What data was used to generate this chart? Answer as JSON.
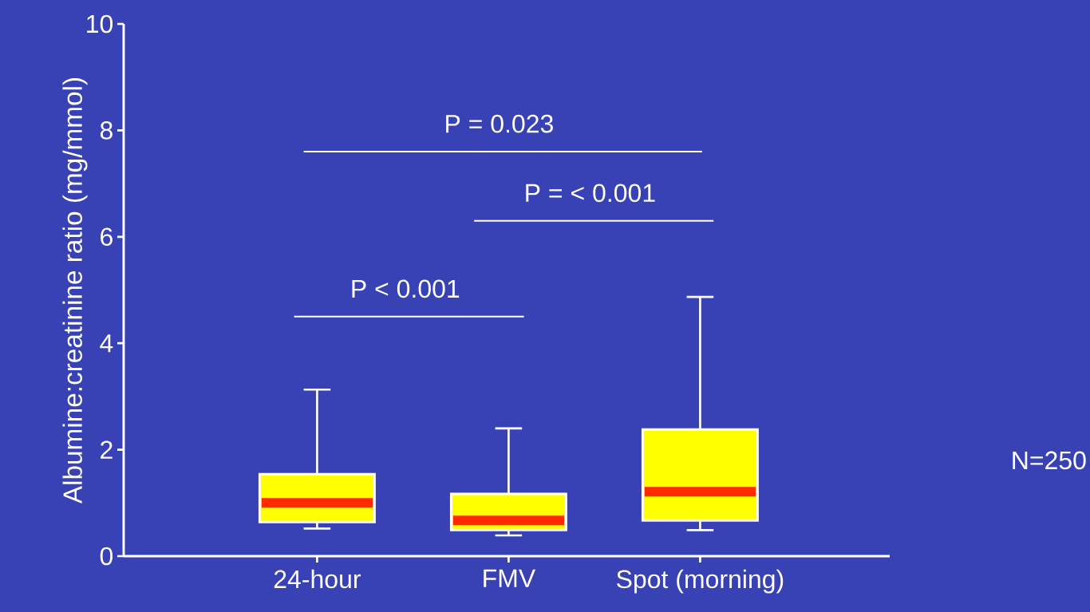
{
  "chart_data": {
    "type": "box",
    "ylabel": "Albumine:creatinine ratio (mg/mmol)",
    "categories": [
      "24-hour",
      "FMV",
      "Spot (morning)"
    ],
    "color": "#ffff00",
    "boxes": [
      {
        "low": 0.52,
        "q1": 0.64,
        "median": 1.0,
        "q3": 1.54,
        "high": 3.13
      },
      {
        "low": 0.39,
        "q1": 0.49,
        "median": 0.67,
        "q3": 1.17,
        "high": 2.4
      },
      {
        "low": 0.49,
        "q1": 0.67,
        "median": 1.21,
        "q3": 2.38,
        "high": 4.87
      }
    ],
    "ylim": [
      0,
      10
    ],
    "yticks": [
      0,
      2,
      4,
      6,
      8,
      10
    ],
    "annotations": [
      "P = 0.023",
      "P = < 0.001",
      "P < 0.001",
      "N=250"
    ]
  }
}
